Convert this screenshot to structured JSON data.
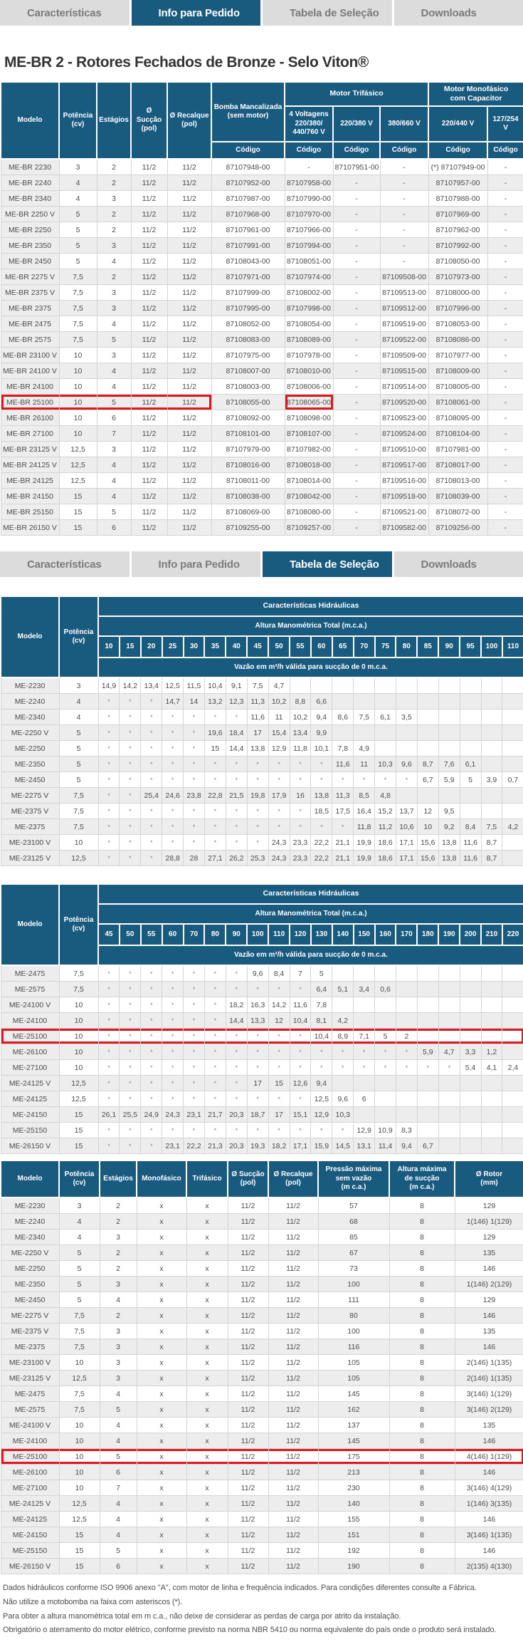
{
  "tab_bars": {
    "top": {
      "items": [
        {
          "label": "Características",
          "active": false
        },
        {
          "label": "Info para Pedido",
          "active": true
        },
        {
          "label": "Tabela de Seleção",
          "active": false
        },
        {
          "label": "Downloads",
          "active": false
        }
      ]
    },
    "middle": {
      "items": [
        {
          "label": "Características",
          "active": false
        },
        {
          "label": "Info para Pedido",
          "active": false
        },
        {
          "label": "Tabela de Seleção",
          "active": true
        },
        {
          "label": "Downloads",
          "active": false
        }
      ]
    }
  },
  "page_title": "ME-BR 2 - Rotores Fechados de Bronze - Selo Viton®",
  "order_table": {
    "col_headers": {
      "modelo": "Modelo",
      "potencia": "Potência\n(cv)",
      "estagios": "Estágios",
      "succao": "Ø Sucção\n(pol)",
      "recalque": "Ø Recalque\n(pol)",
      "bomba": "Bomba Mancalizada\n(sem motor)",
      "trifasico_group": "Motor Trifásico",
      "monofasico_group": "Motor Monofásico\ncom Capacitor",
      "volt4": "4 Voltagens\n220/380/\n440/760 V",
      "v220_380": "220/380 V",
      "v380_660": "380/660 V",
      "v220_440": "220/440 V",
      "v127_254": "127/254 V",
      "codigo": "Código"
    },
    "rows": [
      [
        "ME-BR 2230",
        "3",
        "2",
        "11/2",
        "11/2",
        "87107948-00",
        "-",
        "87107951-00",
        "-",
        "(*) 87107949-00",
        "-"
      ],
      [
        "ME-BR 2240",
        "4",
        "2",
        "11/2",
        "11/2",
        "87107952-00",
        "87107958-00",
        "-",
        "-",
        "87107957-00",
        "-"
      ],
      [
        "ME-BR 2340",
        "4",
        "3",
        "11/2",
        "11/2",
        "87107987-00",
        "87107990-00",
        "-",
        "-",
        "87107988-00",
        "-"
      ],
      [
        "ME-BR 2250 V",
        "5",
        "2",
        "11/2",
        "11/2",
        "87107968-00",
        "87107970-00",
        "-",
        "-",
        "87107969-00",
        "-"
      ],
      [
        "ME-BR 2250",
        "5",
        "2",
        "11/2",
        "11/2",
        "87107961-00",
        "87107966-00",
        "-",
        "-",
        "87107962-00",
        "-"
      ],
      [
        "ME-BR 2350",
        "5",
        "3",
        "11/2",
        "11/2",
        "87107991-00",
        "87107994-00",
        "-",
        "-",
        "87107992-00",
        "-"
      ],
      [
        "ME-BR 2450",
        "5",
        "4",
        "11/2",
        "11/2",
        "87108043-00",
        "87108051-00",
        "-",
        "-",
        "87108050-00",
        "-"
      ],
      [
        "ME-BR 2275 V",
        "7,5",
        "2",
        "11/2",
        "11/2",
        "87107971-00",
        "87107974-00",
        "-",
        "87109508-00",
        "87107973-00",
        "-"
      ],
      [
        "ME-BR 2375 V",
        "7,5",
        "3",
        "11/2",
        "11/2",
        "87107999-00",
        "87108002-00",
        "-",
        "87109513-00",
        "87108000-00",
        "-"
      ],
      [
        "ME-BR 2375",
        "7,5",
        "3",
        "11/2",
        "11/2",
        "87107995-00",
        "87107998-00",
        "-",
        "87109512-00",
        "87107996-00",
        "-"
      ],
      [
        "ME-BR 2475",
        "7,5",
        "4",
        "11/2",
        "11/2",
        "87108052-00",
        "87108054-00",
        "-",
        "87109519-00",
        "87108053-00",
        "-"
      ],
      [
        "ME-BR 2575",
        "7,5",
        "5",
        "11/2",
        "11/2",
        "87108083-00",
        "87108089-00",
        "-",
        "87109522-00",
        "87108086-00",
        "-"
      ],
      [
        "ME-BR 23100 V",
        "10",
        "3",
        "11/2",
        "11/2",
        "87107975-00",
        "87107978-00",
        "-",
        "87109509-00",
        "87107977-00",
        "-"
      ],
      [
        "ME-BR 24100 V",
        "10",
        "4",
        "11/2",
        "11/2",
        "87108007-00",
        "87108010-00",
        "-",
        "87109515-00",
        "87108009-00",
        "-"
      ],
      [
        "ME-BR 24100",
        "10",
        "4",
        "11/2",
        "11/2",
        "87108003-00",
        "87108006-00",
        "-",
        "87109514-00",
        "87108005-00",
        "-"
      ],
      [
        "ME-BR 25100",
        "10",
        "5",
        "11/2",
        "11/2",
        "87108055-00",
        "87108065-00",
        "-",
        "87109520-00",
        "87108061-00",
        "-"
      ],
      [
        "ME-BR 26100",
        "10",
        "6",
        "11/2",
        "11/2",
        "87108092-00",
        "87108098-00",
        "-",
        "87109523-00",
        "87108095-00",
        "-"
      ],
      [
        "ME-BR 27100",
        "10",
        "7",
        "11/2",
        "11/2",
        "87108101-00",
        "87108107-00",
        "-",
        "87109524-00",
        "87108104-00",
        "-"
      ],
      [
        "ME-BR 23125 V",
        "12,5",
        "3",
        "11/2",
        "11/2",
        "87107979-00",
        "87107982-00",
        "-",
        "87109510-00",
        "87107981-00",
        "-"
      ],
      [
        "ME-BR 24125 V",
        "12,5",
        "4",
        "11/2",
        "11/2",
        "87108016-00",
        "87108018-00",
        "-",
        "87109517-00",
        "87108017-00",
        "-"
      ],
      [
        "ME-BR 24125",
        "12,5",
        "4",
        "11/2",
        "11/2",
        "87108011-00",
        "87108014-00",
        "-",
        "87109516-00",
        "87108013-00",
        "-"
      ],
      [
        "ME-BR 24150",
        "15",
        "4",
        "11/2",
        "11/2",
        "87108038-00",
        "87108042-00",
        "-",
        "87109518-00",
        "87108039-00",
        "-"
      ],
      [
        "ME-BR 25150",
        "15",
        "5",
        "11/2",
        "11/2",
        "87108069-00",
        "87108080-00",
        "-",
        "87109521-00",
        "87108072-00",
        "-"
      ],
      [
        "ME-BR 26150 V",
        "15",
        "6",
        "11/2",
        "11/2",
        "87109255-00",
        "87109257-00",
        "-",
        "87109582-00",
        "87109256-00",
        "-"
      ]
    ],
    "highlight": {
      "model": "ME-BR 25100",
      "left_span_cols": [
        0,
        4
      ],
      "code_cell_col": 6
    }
  },
  "hydraulic_table_low": {
    "group_title": "Características Hidráulicas",
    "subtitle": "Altura Manométrica Total (m.c.a.)",
    "flow_label": "Vazão em m³/h válida para sucção de 0 m.c.a.",
    "modelo_label": "Modelo",
    "potencia_label": "Potência\n(cv)",
    "cols": [
      "10",
      "15",
      "20",
      "25",
      "30",
      "35",
      "40",
      "45",
      "50",
      "55",
      "60",
      "65",
      "70",
      "75",
      "80",
      "85",
      "90",
      "95",
      "100",
      "110"
    ],
    "rows": [
      [
        "ME-2230",
        "3",
        "14,9",
        "14,2",
        "13,4",
        "12,5",
        "11,5",
        "10,4",
        "9,1",
        "7,5",
        "4,7"
      ],
      [
        "ME-2240",
        "4",
        "*",
        "*",
        "*",
        "14,7",
        "14",
        "13,2",
        "12,3",
        "11,3",
        "10,2",
        "8,8",
        "6,6"
      ],
      [
        "ME-2340",
        "4",
        "*",
        "*",
        "*",
        "*",
        "*",
        "*",
        "*",
        "11,6",
        "11",
        "10,2",
        "9,4",
        "8,6",
        "7,5",
        "6,1",
        "3,5"
      ],
      [
        "ME-2250 V",
        "5",
        "*",
        "*",
        "*",
        "*",
        "*",
        "19,6",
        "18,4",
        "17",
        "15,4",
        "13,4",
        "9,9"
      ],
      [
        "ME-2250",
        "5",
        "*",
        "*",
        "*",
        "*",
        "*",
        "15",
        "14,4",
        "13,8",
        "12,9",
        "11,8",
        "10,1",
        "7,8",
        "4,9"
      ],
      [
        "ME-2350",
        "5",
        "*",
        "*",
        "*",
        "*",
        "*",
        "*",
        "*",
        "*",
        "*",
        "*",
        "*",
        "11,6",
        "11",
        "10,3",
        "9,6",
        "8,7",
        "7,6",
        "6,1"
      ],
      [
        "ME-2450",
        "5",
        "*",
        "*",
        "*",
        "*",
        "*",
        "*",
        "*",
        "*",
        "*",
        "*",
        "*",
        "*",
        "*",
        "*",
        "*",
        "6,7",
        "5,9",
        "5",
        "3,9",
        "0,7"
      ],
      [
        "ME-2275 V",
        "7,5",
        "*",
        "*",
        "25,4",
        "24,6",
        "23,8",
        "22,8",
        "21,5",
        "19,8",
        "17,9",
        "16",
        "13,8",
        "11,3",
        "8,5",
        "4,8"
      ],
      [
        "ME-2375 V",
        "7,5",
        "*",
        "*",
        "*",
        "*",
        "*",
        "*",
        "*",
        "*",
        "*",
        "*",
        "18,5",
        "17,5",
        "16,4",
        "15,2",
        "13,7",
        "12",
        "9,5"
      ],
      [
        "ME-2375",
        "7,5",
        "*",
        "*",
        "*",
        "*",
        "*",
        "*",
        "*",
        "*",
        "*",
        "*",
        "*",
        "*",
        "11,8",
        "11,2",
        "10,6",
        "10",
        "9,2",
        "8,4",
        "7,5",
        "4,2"
      ],
      [
        "ME-23100 V",
        "10",
        "*",
        "*",
        "*",
        "*",
        "*",
        "*",
        "*",
        "*",
        "24,3",
        "23,3",
        "22,2",
        "21,1",
        "19,9",
        "18,6",
        "17,1",
        "15,6",
        "13,8",
        "11,6",
        "8,7"
      ],
      [
        "ME-23125 V",
        "12,5",
        "*",
        "*",
        "*",
        "28,8",
        "28",
        "27,1",
        "26,2",
        "25,3",
        "24,3",
        "23,3",
        "22,2",
        "21,1",
        "19,9",
        "18,6",
        "17,1",
        "15,6",
        "13,8",
        "11,6",
        "8,7"
      ]
    ],
    "highlight_model": null
  },
  "hydraulic_table_high": {
    "group_title": "Características Hidráulicas",
    "subtitle": "Altura Manométrica Total (m.c.a.)",
    "flow_label": "Vazão em m³/h válida para sucção de 0 m.c.a.",
    "modelo_label": "Modelo",
    "potencia_label": "Potência\n(cv)",
    "cols": [
      "45",
      "50",
      "55",
      "60",
      "70",
      "80",
      "90",
      "100",
      "110",
      "120",
      "130",
      "140",
      "150",
      "160",
      "170",
      "180",
      "190",
      "200",
      "210",
      "220"
    ],
    "rows": [
      [
        "ME-2475",
        "7,5",
        "*",
        "*",
        "*",
        "*",
        "*",
        "*",
        "*",
        "9,6",
        "8,4",
        "7",
        "5"
      ],
      [
        "ME-2575",
        "7,5",
        "*",
        "*",
        "*",
        "*",
        "*",
        "*",
        "*",
        "*",
        "*",
        "*",
        "6,4",
        "5,1",
        "3,4",
        "0,6"
      ],
      [
        "ME-24100 V",
        "10",
        "*",
        "*",
        "*",
        "*",
        "*",
        "*",
        "18,2",
        "16,3",
        "14,2",
        "11,6",
        "7,8"
      ],
      [
        "ME-24100",
        "10",
        "*",
        "*",
        "*",
        "*",
        "*",
        "*",
        "14,4",
        "13,3",
        "12",
        "10,4",
        "8,1",
        "4,2"
      ],
      [
        "ME-25100",
        "10",
        "*",
        "*",
        "*",
        "*",
        "*",
        "*",
        "*",
        "*",
        "*",
        "*",
        "10,4",
        "8,9",
        "7,1",
        "5",
        "2"
      ],
      [
        "ME-26100",
        "10",
        "*",
        "*",
        "*",
        "*",
        "*",
        "*",
        "*",
        "*",
        "*",
        "*",
        "*",
        "*",
        "*",
        "*",
        "*",
        "5,9",
        "4,7",
        "3,3",
        "1,2"
      ],
      [
        "ME-27100",
        "10",
        "*",
        "*",
        "*",
        "*",
        "*",
        "*",
        "*",
        "*",
        "*",
        "*",
        "*",
        "*",
        "*",
        "*",
        "*",
        "*",
        "*",
        "5,4",
        "4,1",
        "2,4"
      ],
      [
        "ME-24125 V",
        "12,5",
        "*",
        "*",
        "*",
        "*",
        "*",
        "*",
        "*",
        "17",
        "15",
        "12,6",
        "9,4"
      ],
      [
        "ME-24125",
        "12,5",
        "*",
        "*",
        "*",
        "*",
        "*",
        "*",
        "*",
        "*",
        "*",
        "*",
        "12,5",
        "9,6",
        "6"
      ],
      [
        "ME-24150",
        "15",
        "26,1",
        "25,5",
        "24,9",
        "24,3",
        "23,1",
        "21,7",
        "20,3",
        "18,7",
        "17",
        "15,1",
        "12,9",
        "10,3"
      ],
      [
        "ME-25150",
        "15",
        "*",
        "*",
        "*",
        "*",
        "*",
        "*",
        "*",
        "*",
        "*",
        "*",
        "*",
        "*",
        "12,9",
        "10,9",
        "8,3"
      ],
      [
        "ME-26150 V",
        "15",
        "*",
        "*",
        "*",
        "23,1",
        "22,2",
        "21,3",
        "20,3",
        "19,3",
        "18,2",
        "17,1",
        "15,9",
        "14,5",
        "13,1",
        "11,4",
        "9,4",
        "6,7"
      ]
    ],
    "highlight_model": "ME-25100"
  },
  "spec_table": {
    "headers": [
      "Modelo",
      "Potência\n(cv)",
      "Estágios",
      "Monofásico",
      "Trifásico",
      "Ø Sucção\n(pol)",
      "Ø Recalque\n(pol)",
      "Pressão máxima\nsem vazão\n(m c.a.)",
      "Altura máxima\nde sucção\n(m c.a.)",
      "Ø Rotor\n(mm)"
    ],
    "rows": [
      [
        "ME-2230",
        "3",
        "2",
        "x",
        "x",
        "11/2",
        "11/2",
        "57",
        "8",
        "129"
      ],
      [
        "ME-2240",
        "4",
        "2",
        "x",
        "x",
        "11/2",
        "11/2",
        "68",
        "8",
        "1(146) 1(129)"
      ],
      [
        "ME-2340",
        "4",
        "3",
        "x",
        "x",
        "11/2",
        "11/2",
        "85",
        "8",
        "129"
      ],
      [
        "ME-2250 V",
        "5",
        "2",
        "x",
        "x",
        "11/2",
        "11/2",
        "67",
        "8",
        "135"
      ],
      [
        "ME-2250",
        "5",
        "2",
        "x",
        "x",
        "11/2",
        "11/2",
        "73",
        "8",
        "146"
      ],
      [
        "ME-2350",
        "5",
        "3",
        "x",
        "x",
        "11/2",
        "11/2",
        "100",
        "8",
        "1(146) 2(129)"
      ],
      [
        "ME-2450",
        "5",
        "4",
        "x",
        "x",
        "11/2",
        "11/2",
        "111",
        "8",
        "129"
      ],
      [
        "ME-2275 V",
        "7,5",
        "2",
        "x",
        "x",
        "11/2",
        "11/2",
        "80",
        "8",
        "146"
      ],
      [
        "ME-2375 V",
        "7,5",
        "3",
        "x",
        "x",
        "11/2",
        "11/2",
        "100",
        "8",
        "135"
      ],
      [
        "ME-2375",
        "7,5",
        "3",
        "x",
        "x",
        "11/2",
        "11/2",
        "116",
        "8",
        "146"
      ],
      [
        "ME-23100 V",
        "10",
        "3",
        "x",
        "x",
        "11/2",
        "11/2",
        "105",
        "8",
        "2(146) 1(135)"
      ],
      [
        "ME-23125 V",
        "12,5",
        "3",
        "x",
        "x",
        "11/2",
        "11/2",
        "105",
        "8",
        "2(146) 1(135)"
      ],
      [
        "ME-2475",
        "7,5",
        "4",
        "x",
        "x",
        "11/2",
        "11/2",
        "145",
        "8",
        "3(146) 1(129)"
      ],
      [
        "ME-2575",
        "7,5",
        "5",
        "x",
        "x",
        "11/2",
        "11/2",
        "162",
        "8",
        "3(146) 2(129)"
      ],
      [
        "ME-24100 V",
        "10",
        "4",
        "x",
        "x",
        "11/2",
        "11/2",
        "137",
        "8",
        "135"
      ],
      [
        "ME-24100",
        "10",
        "4",
        "x",
        "x",
        "11/2",
        "11/2",
        "145",
        "8",
        "146"
      ],
      [
        "ME-25100",
        "10",
        "5",
        "x",
        "x",
        "11/2",
        "11/2",
        "175",
        "8",
        "4(146) 1(129)"
      ],
      [
        "ME-26100",
        "10",
        "6",
        "x",
        "x",
        "11/2",
        "11/2",
        "213",
        "8",
        "146"
      ],
      [
        "ME-27100",
        "10",
        "7",
        "x",
        "x",
        "11/2",
        "11/2",
        "230",
        "8",
        "3(146) 4(129)"
      ],
      [
        "ME-24125 V",
        "12,5",
        "4",
        "x",
        "x",
        "11/2",
        "11/2",
        "140",
        "8",
        "1(146) 3(135)"
      ],
      [
        "ME-24125",
        "12,5",
        "4",
        "x",
        "x",
        "11/2",
        "11/2",
        "155",
        "8",
        "146"
      ],
      [
        "ME-24150",
        "15",
        "4",
        "x",
        "x",
        "11/2",
        "11/2",
        "151",
        "8",
        "3(146) 1(135)"
      ],
      [
        "ME-25150",
        "15",
        "5",
        "x",
        "x",
        "11/2",
        "11/2",
        "192",
        "8",
        "146"
      ],
      [
        "ME-26150 V",
        "15",
        "6",
        "x",
        "x",
        "11/2",
        "11/2",
        "190",
        "8",
        "2(135) 4(130)"
      ]
    ],
    "highlight_model": "ME-25100"
  },
  "footnotes": [
    "Dados hidráulicos conforme ISO 9906 anexo \"A\", com motor de linha e frequência indicados. Para condições diferentes consulte a Fábrica.",
    "Não utilize a motobomba na faixa com asteriscos (*).",
    "Para obter a altura manométrica total em m c.a., não deixe de considerar as perdas de carga por atrito da instalação.",
    "Obrigatório o aterramento do motor elétrico, conforme previsto na norma NBR 5410 ou norma equivalente do país onde o produto será instalado."
  ],
  "colors": {
    "accent_blue": "#195a7f",
    "tab_gray": "#dcdcdc",
    "highlight_red": "#e0181e"
  }
}
